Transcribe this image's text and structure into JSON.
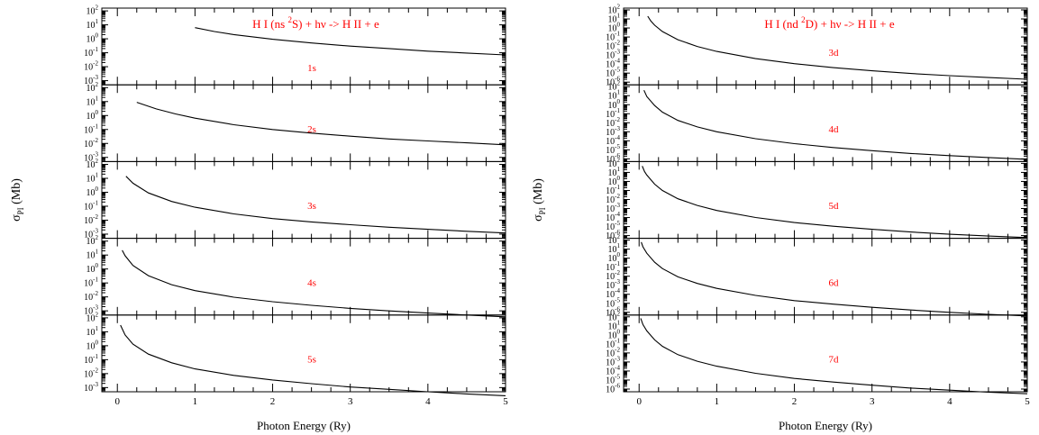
{
  "figure": {
    "ylabel_main": "σ",
    "ylabel_sub": "PI",
    "ylabel_unit": " (Mb)",
    "xlabel": "Photon Energy (Ry)",
    "accent_color": "#ff0000",
    "line_color": "#000000"
  },
  "chart_data": [
    {
      "type": "line",
      "title": "H I (ns ²S) + hν -> H II + e",
      "title_parts": [
        "H I (ns ",
        "2",
        "S) + hν -> H II + e"
      ],
      "xlabel": "Photon Energy (Ry)",
      "ylabel": "σPI (Mb)",
      "xlim": [
        -0.2,
        5
      ],
      "x_ticks": [
        0,
        1,
        2,
        3,
        4,
        5
      ],
      "ylim_log": [
        -3.3,
        2.2
      ],
      "y_ticks_exp": [
        2,
        1,
        0,
        -1,
        -2,
        -3
      ],
      "y_scale": "log",
      "panels": [
        {
          "label": "1s",
          "x": [
            1.0,
            1.25,
            1.5,
            2.0,
            2.5,
            3.0,
            3.5,
            4.0,
            4.5,
            5.0
          ],
          "y": [
            6.3,
            3.3,
            2.0,
            0.92,
            0.5,
            0.3,
            0.2,
            0.13,
            0.095,
            0.07
          ]
        },
        {
          "label": "2s",
          "x": [
            0.25,
            0.5,
            0.75,
            1.0,
            1.5,
            2.0,
            2.5,
            3.0,
            3.5,
            4.0,
            4.5,
            5.0
          ],
          "y": [
            8.9,
            3.0,
            1.3,
            0.65,
            0.22,
            0.1,
            0.055,
            0.033,
            0.021,
            0.015,
            0.011,
            0.008
          ]
        },
        {
          "label": "3s",
          "x": [
            0.111,
            0.2,
            0.4,
            0.7,
            1.0,
            1.5,
            2.0,
            2.5,
            3.0,
            3.5,
            4.0,
            4.5,
            5.0
          ],
          "y": [
            14,
            4.5,
            0.9,
            0.22,
            0.085,
            0.028,
            0.013,
            0.0075,
            0.0047,
            0.0031,
            0.0022,
            0.0016,
            0.0012
          ]
        },
        {
          "label": "4s",
          "x": [
            0.0625,
            0.1,
            0.2,
            0.4,
            0.7,
            1.0,
            1.5,
            2.0,
            2.5,
            3.0,
            3.5,
            4.0,
            4.5,
            5.0
          ],
          "y": [
            22,
            9.0,
            1.8,
            0.33,
            0.075,
            0.028,
            0.0095,
            0.0045,
            0.0025,
            0.0015,
            0.001,
            0.0007,
            0.0005,
            0.00037
          ]
        },
        {
          "label": "5s",
          "x": [
            0.04,
            0.1,
            0.2,
            0.4,
            0.7,
            1.0,
            1.5,
            2.0,
            2.5,
            3.0,
            3.5,
            4.0,
            4.5,
            5.0
          ],
          "y": [
            30,
            6.0,
            1.3,
            0.25,
            0.06,
            0.022,
            0.0075,
            0.0035,
            0.0019,
            0.0011,
            0.00075,
            0.0005,
            0.00035,
            0.00026
          ]
        }
      ]
    },
    {
      "type": "line",
      "title": "H I (nd ²D) + hν -> H II + e",
      "title_parts": [
        "H I (nd ",
        "2",
        "D) + hν -> H II + e"
      ],
      "xlabel": "Photon Energy (Ry)",
      "ylabel": "σPI (Mb)",
      "xlim": [
        -0.2,
        5
      ],
      "x_ticks": [
        0,
        1,
        2,
        3,
        4,
        5
      ],
      "ylim_log": [
        -6.3,
        2.2
      ],
      "y_ticks_exp": [
        2,
        1,
        0,
        -1,
        -2,
        -3,
        -4,
        -5,
        -6
      ],
      "y_scale": "log",
      "panels": [
        {
          "label": "3d",
          "x": [
            0.111,
            0.15,
            0.2,
            0.3,
            0.5,
            0.75,
            1.0,
            1.5,
            2.0,
            2.5,
            3.0,
            3.5,
            4.0,
            4.5,
            5.0
          ],
          "y": [
            20,
            6.0,
            2.0,
            0.4,
            0.05,
            0.009,
            0.0025,
            0.0004,
            0.00011,
            4e-05,
            1.8e-05,
            9e-06,
            5.2e-06,
            3.2e-06,
            2.1e-06
          ]
        },
        {
          "label": "4d",
          "x": [
            0.0625,
            0.1,
            0.2,
            0.3,
            0.5,
            0.75,
            1.0,
            1.5,
            2.0,
            2.5,
            3.0,
            3.5,
            4.0,
            4.5,
            5.0
          ],
          "y": [
            40,
            8.0,
            0.8,
            0.15,
            0.018,
            0.0035,
            0.001,
            0.00017,
            4.8e-05,
            1.8e-05,
            8e-06,
            4e-06,
            2.3e-06,
            1.4e-06,
            9e-07
          ]
        },
        {
          "label": "5d",
          "x": [
            0.04,
            0.07,
            0.1,
            0.2,
            0.3,
            0.5,
            0.75,
            1.0,
            1.5,
            2.0,
            2.5,
            3.0,
            3.5,
            4.0,
            4.5,
            5.0
          ],
          "y": [
            50,
            12,
            5.0,
            0.5,
            0.1,
            0.012,
            0.0022,
            0.0006,
            0.0001,
            2.8e-05,
            1.1e-05,
            5e-06,
            2.5e-06,
            1.4e-06,
            9e-07,
            6e-07
          ]
        },
        {
          "label": "6d",
          "x": [
            0.028,
            0.05,
            0.1,
            0.2,
            0.3,
            0.5,
            0.75,
            1.0,
            1.5,
            2.0,
            2.5,
            3.0,
            3.5,
            4.0,
            4.5,
            5.0
          ],
          "y": [
            60,
            18,
            3.5,
            0.35,
            0.07,
            0.0085,
            0.0016,
            0.00045,
            7.5e-05,
            2e-05,
            8e-06,
            3.6e-06,
            1.8e-06,
            1e-06,
            6e-07,
            4e-07
          ]
        },
        {
          "label": "7d",
          "x": [
            0.02,
            0.05,
            0.1,
            0.2,
            0.3,
            0.5,
            0.75,
            1.0,
            1.5,
            2.0,
            2.5,
            3.0,
            3.5,
            4.0,
            4.5,
            5.0
          ],
          "y": [
            70,
            14,
            2.8,
            0.28,
            0.055,
            0.0065,
            0.0012,
            0.00034,
            5.5e-05,
            1.5e-05,
            6e-06,
            2.7e-06,
            1.3e-06,
            7.5e-07,
            4.5e-07,
            3e-07
          ]
        }
      ]
    }
  ]
}
